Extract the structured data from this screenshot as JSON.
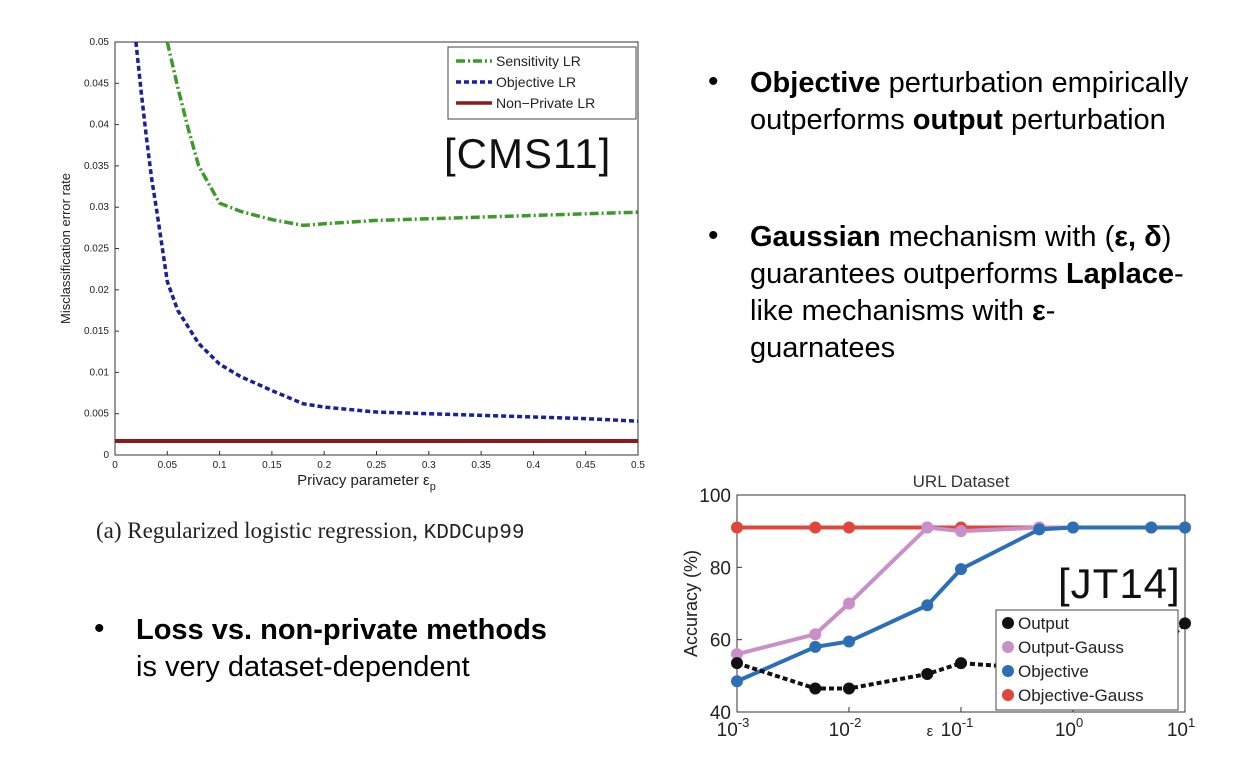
{
  "bullets_right": [
    {
      "parts": [
        {
          "t": "Objective",
          "b": true
        },
        {
          "t": " perturbation empirically outperforms ",
          "b": false
        },
        {
          "t": "output",
          "b": true
        },
        {
          "t": " perturbation",
          "b": false
        }
      ]
    },
    {
      "parts": [
        {
          "t": "Gaussian",
          "b": true
        },
        {
          "t": " mechanism with (",
          "b": false
        },
        {
          "t": "ε, δ",
          "b": true
        },
        {
          "t": ") guarantees outperforms ",
          "b": false
        },
        {
          "t": "Laplace",
          "b": true
        },
        {
          "t": "-like mechanisms with ",
          "b": false
        },
        {
          "t": "ε",
          "b": true
        },
        {
          "t": "-guarnatees",
          "b": false
        }
      ]
    }
  ],
  "bullet_left": {
    "bold": "Loss vs. non-private methods",
    "rest": "is very dataset-dependent"
  },
  "caption": {
    "prefix": "(a) Regularized logistic regression, ",
    "mono": "KDDCup99"
  },
  "tag_left": "[CMS11]",
  "tag_right": "[JT14]",
  "chart_data": [
    {
      "type": "line",
      "title": "",
      "xlabel": "Privacy parameter ε",
      "xlabel_sub": "p",
      "ylabel": "Misclassification error rate",
      "xlim": [
        0,
        0.5
      ],
      "ylim": [
        0,
        0.05
      ],
      "xticks": [
        "0",
        "0.05",
        "0.1",
        "0.15",
        "0.2",
        "0.25",
        "0.3",
        "0.35",
        "0.4",
        "0.45",
        "0.5"
      ],
      "yticks": [
        "0",
        "0.005",
        "0.01",
        "0.015",
        "0.02",
        "0.025",
        "0.03",
        "0.035",
        "0.04",
        "0.045",
        "0.05"
      ],
      "legend_position": "top-right",
      "series": [
        {
          "name": "Sensitivity LR",
          "color": "#3c9a2a",
          "style": "dashdot",
          "x": [
            0.05,
            0.06,
            0.07,
            0.08,
            0.1,
            0.12,
            0.15,
            0.18,
            0.2,
            0.25,
            0.3,
            0.35,
            0.4,
            0.45,
            0.5
          ],
          "y": [
            0.05,
            0.0445,
            0.0395,
            0.035,
            0.0305,
            0.0295,
            0.0285,
            0.0278,
            0.028,
            0.0284,
            0.0286,
            0.0288,
            0.029,
            0.0292,
            0.0294
          ]
        },
        {
          "name": "Objective LR",
          "color": "#1a1f9c",
          "style": "dotted",
          "x": [
            0.02,
            0.025,
            0.03,
            0.035,
            0.04,
            0.05,
            0.06,
            0.08,
            0.1,
            0.12,
            0.15,
            0.18,
            0.2,
            0.25,
            0.3,
            0.35,
            0.4,
            0.45,
            0.5
          ],
          "y": [
            0.05,
            0.044,
            0.0385,
            0.0335,
            0.0295,
            0.021,
            0.0175,
            0.0135,
            0.011,
            0.0095,
            0.0078,
            0.0062,
            0.0058,
            0.0052,
            0.005,
            0.0048,
            0.0046,
            0.0044,
            0.0041
          ]
        },
        {
          "name": "Non−Private LR",
          "color": "#8b1a1a",
          "style": "solid",
          "x": [
            0,
            0.5
          ],
          "y": [
            0.0017,
            0.0017
          ]
        }
      ]
    },
    {
      "type": "line",
      "title": "URL Dataset",
      "xlabel": "ε",
      "ylabel": "Accuracy (%)",
      "x_scale": "log",
      "xlim": [
        0.001,
        10
      ],
      "ylim": [
        40,
        100
      ],
      "xticks": [
        {
          "base": "10",
          "exp": "-3"
        },
        {
          "base": "10",
          "exp": "-2"
        },
        {
          "base": "10",
          "exp": "-1"
        },
        {
          "base": "10",
          "exp": "0"
        },
        {
          "base": "10",
          "exp": "1"
        }
      ],
      "yticks": [
        "40",
        "60",
        "80",
        "100"
      ],
      "legend_position": "bottom-right",
      "series": [
        {
          "name": "Output",
          "color": "#111111",
          "style": "dotted",
          "x": [
            0.001,
            0.005,
            0.01,
            0.05,
            0.1,
            0.5,
            1,
            5,
            10
          ],
          "y": [
            53.5,
            46.5,
            46.5,
            50.5,
            53.5,
            52,
            52,
            55,
            64.5
          ]
        },
        {
          "name": "Output-Gauss",
          "color": "#c98fc9",
          "style": "solid",
          "x": [
            0.001,
            0.005,
            0.01,
            0.05,
            0.1,
            0.5,
            1,
            5,
            10
          ],
          "y": [
            56,
            61.5,
            70,
            91,
            90,
            91,
            91,
            91,
            91
          ]
        },
        {
          "name": "Objective",
          "color": "#2d6fb6",
          "style": "solid",
          "x": [
            0.001,
            0.005,
            0.01,
            0.05,
            0.1,
            0.5,
            1,
            5,
            10
          ],
          "y": [
            48.5,
            58,
            59.5,
            69.5,
            79.5,
            90.5,
            91,
            91,
            91
          ]
        },
        {
          "name": "Objective-Gauss",
          "color": "#e0453a",
          "style": "solid",
          "x": [
            0.001,
            0.005,
            0.01,
            0.05,
            0.1,
            0.5,
            1,
            5,
            10
          ],
          "y": [
            91,
            91,
            91,
            91,
            91,
            91,
            91,
            91,
            91
          ]
        }
      ]
    }
  ]
}
